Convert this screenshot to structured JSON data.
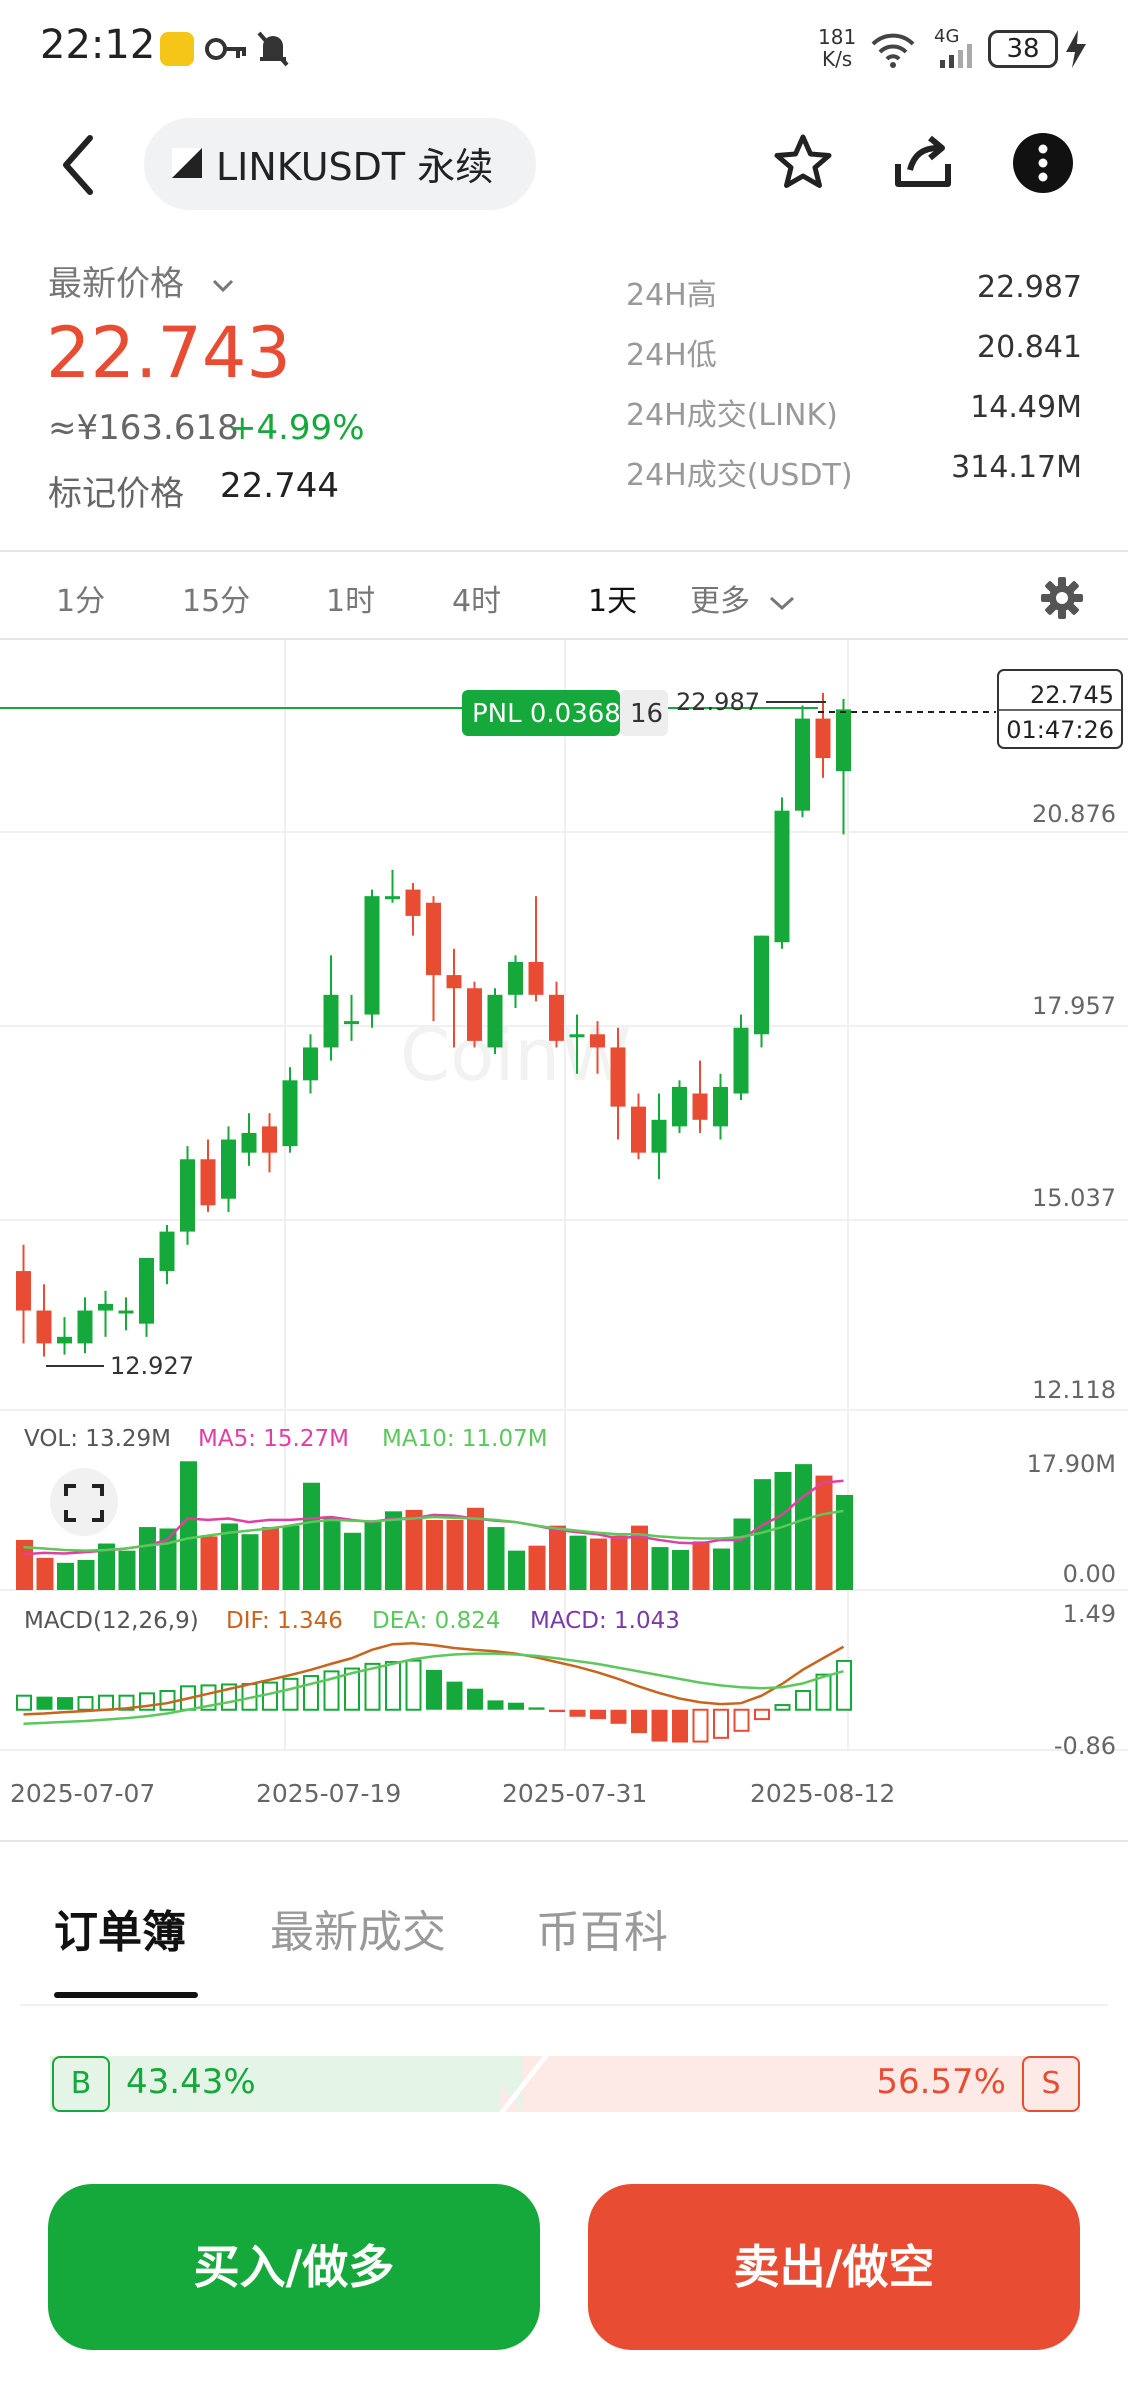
{
  "status_bar": {
    "time": "22:12",
    "net_speed_value": "181",
    "net_speed_unit": "K/s",
    "signal_label": "4G",
    "battery": "38"
  },
  "header": {
    "symbol": "LINKUSDT 永续",
    "icons": [
      "back-arrow-icon",
      "star-icon",
      "share-icon",
      "more-icon"
    ]
  },
  "price": {
    "label": "最新价格",
    "last": "22.743",
    "cny": "≈¥163.618",
    "change": "+4.99%",
    "mark_label": "标记价格",
    "mark_value": "22.744"
  },
  "stats": [
    {
      "label": "24H高",
      "value": "22.987"
    },
    {
      "label": "24H低",
      "value": "20.841"
    },
    {
      "label": "24H成交(LINK)",
      "value": "14.49M"
    },
    {
      "label": "24H成交(USDT)",
      "value": "314.17M"
    }
  ],
  "timeframes": [
    "1分",
    "15分",
    "1时",
    "4时",
    "1天",
    "更多"
  ],
  "active_timeframe": "1天",
  "chart_overlay": {
    "pnl_label": "PNL 0.0368",
    "pnl_qty": "16",
    "high_marker": "22.987",
    "low_marker": "12.927",
    "current_price_tag": "22.745",
    "countdown": "01:47:26",
    "vol_legend": "VOL: 13.29M",
    "ma5_legend": "MA5: 15.27M",
    "ma10_legend": "MA10: 11.07M",
    "macd_legend": "MACD(12,26,9)",
    "dif_legend": "DIF: 1.346",
    "dea_legend": "DEA: 0.824",
    "macd_value_legend": "MACD: 1.043"
  },
  "chart_data": {
    "type": "candlestick",
    "price_axis_labels": [
      "20.876",
      "17.957",
      "15.037",
      "12.118"
    ],
    "price_ylim": [
      12.118,
      23.795
    ],
    "volume_axis_labels": [
      "17.90M",
      "0.00"
    ],
    "volume_ylim": [
      0,
      17.9
    ],
    "macd_axis_labels": [
      "1.49",
      "-0.86"
    ],
    "macd_ylim": [
      -0.86,
      1.49
    ],
    "x_axis_labels": [
      "2025-07-07",
      "2025-07-19",
      "2025-07-31",
      "2025-08-12"
    ],
    "candles": [
      {
        "o": 14.2,
        "h": 14.6,
        "l": 13.1,
        "c": 13.6
      },
      {
        "o": 13.6,
        "h": 14.0,
        "l": 12.9,
        "c": 13.1
      },
      {
        "o": 13.1,
        "h": 13.5,
        "l": 12.93,
        "c": 13.2
      },
      {
        "o": 13.1,
        "h": 13.8,
        "l": 12.95,
        "c": 13.6
      },
      {
        "o": 13.6,
        "h": 13.9,
        "l": 13.2,
        "c": 13.7
      },
      {
        "o": 13.6,
        "h": 13.8,
        "l": 13.3,
        "c": 13.6
      },
      {
        "o": 13.4,
        "h": 14.4,
        "l": 13.2,
        "c": 14.4
      },
      {
        "o": 14.2,
        "h": 14.9,
        "l": 14.0,
        "c": 14.8
      },
      {
        "o": 14.8,
        "h": 16.1,
        "l": 14.6,
        "c": 15.9
      },
      {
        "o": 15.9,
        "h": 16.2,
        "l": 15.1,
        "c": 15.2
      },
      {
        "o": 15.3,
        "h": 16.4,
        "l": 15.1,
        "c": 16.2
      },
      {
        "o": 16.0,
        "h": 16.6,
        "l": 15.8,
        "c": 16.3
      },
      {
        "o": 16.4,
        "h": 16.6,
        "l": 15.7,
        "c": 16.0
      },
      {
        "o": 16.1,
        "h": 17.3,
        "l": 16.0,
        "c": 17.1
      },
      {
        "o": 17.1,
        "h": 17.8,
        "l": 16.9,
        "c": 17.6
      },
      {
        "o": 17.6,
        "h": 19.0,
        "l": 17.4,
        "c": 18.4
      },
      {
        "o": 18.0,
        "h": 18.4,
        "l": 17.7,
        "c": 18.0
      },
      {
        "o": 18.1,
        "h": 20.0,
        "l": 17.9,
        "c": 19.9
      },
      {
        "o": 19.9,
        "h": 20.3,
        "l": 19.8,
        "c": 19.9
      },
      {
        "o": 20.0,
        "h": 20.1,
        "l": 19.3,
        "c": 19.6
      },
      {
        "o": 19.8,
        "h": 19.9,
        "l": 18.0,
        "c": 18.7
      },
      {
        "o": 18.7,
        "h": 19.1,
        "l": 17.6,
        "c": 18.5
      },
      {
        "o": 18.5,
        "h": 18.6,
        "l": 17.6,
        "c": 17.7
      },
      {
        "o": 17.6,
        "h": 18.5,
        "l": 17.5,
        "c": 18.4
      },
      {
        "o": 18.4,
        "h": 19.0,
        "l": 18.2,
        "c": 18.9
      },
      {
        "o": 18.9,
        "h": 19.9,
        "l": 18.3,
        "c": 18.4
      },
      {
        "o": 18.4,
        "h": 18.6,
        "l": 17.6,
        "c": 17.7
      },
      {
        "o": 17.8,
        "h": 18.1,
        "l": 17.2,
        "c": 17.8
      },
      {
        "o": 17.8,
        "h": 18.0,
        "l": 17.2,
        "c": 17.6
      },
      {
        "o": 17.6,
        "h": 17.9,
        "l": 16.2,
        "c": 16.7
      },
      {
        "o": 16.7,
        "h": 16.9,
        "l": 15.9,
        "c": 16.0
      },
      {
        "o": 16.0,
        "h": 16.9,
        "l": 15.6,
        "c": 16.5
      },
      {
        "o": 16.4,
        "h": 17.1,
        "l": 16.3,
        "c": 17.0
      },
      {
        "o": 16.9,
        "h": 17.4,
        "l": 16.3,
        "c": 16.5
      },
      {
        "o": 16.4,
        "h": 17.2,
        "l": 16.2,
        "c": 17.0
      },
      {
        "o": 16.9,
        "h": 18.1,
        "l": 16.8,
        "c": 17.9
      },
      {
        "o": 17.8,
        "h": 19.3,
        "l": 17.6,
        "c": 19.3
      },
      {
        "o": 19.2,
        "h": 21.4,
        "l": 19.1,
        "c": 21.2
      },
      {
        "o": 21.2,
        "h": 22.8,
        "l": 21.1,
        "c": 22.6
      },
      {
        "o": 22.6,
        "h": 22.99,
        "l": 21.7,
        "c": 22.0
      },
      {
        "o": 21.8,
        "h": 22.9,
        "l": 20.84,
        "c": 22.74
      }
    ],
    "volume": [
      7.0,
      4.5,
      3.8,
      4.2,
      6.5,
      5.5,
      8.8,
      8.6,
      18.0,
      7.5,
      9.3,
      7.8,
      8.8,
      9.0,
      15.0,
      10.2,
      8.0,
      9.5,
      11.0,
      11.2,
      9.8,
      9.8,
      11.5,
      8.8,
      5.5,
      6.2,
      9.0,
      7.6,
      7.2,
      7.6,
      9.0,
      6.0,
      5.6,
      6.8,
      5.8,
      10.0,
      15.5,
      16.5,
      17.6,
      16.0,
      13.29
    ],
    "ma5": [
      5.0,
      5.2,
      5.1,
      5.3,
      5.5,
      5.8,
      6.2,
      7.0,
      10.0,
      9.8,
      10.0,
      9.5,
      9.8,
      9.8,
      10.0,
      10.2,
      9.8,
      9.5,
      10.0,
      10.0,
      10.5,
      10.4,
      10.0,
      9.7,
      9.5,
      9.0,
      8.4,
      8.1,
      7.8,
      7.2,
      7.5,
      7.0,
      6.6,
      6.5,
      7.0,
      7.0,
      9.0,
      10.5,
      13.0,
      15.0,
      15.27
    ],
    "ma10": [
      6.0,
      5.8,
      5.6,
      5.5,
      5.6,
      5.8,
      6.2,
      6.5,
      7.2,
      7.6,
      8.0,
      8.3,
      8.6,
      9.0,
      9.5,
      9.8,
      9.7,
      9.6,
      9.8,
      10.0,
      10.2,
      10.1,
      10.0,
      9.8,
      9.5,
      9.0,
      8.6,
      8.3,
      8.0,
      7.8,
      7.8,
      7.5,
      7.3,
      7.2,
      7.2,
      7.4,
      8.0,
      8.8,
      9.8,
      10.6,
      11.07
    ],
    "macd_hist": [
      0.3,
      0.28,
      0.27,
      0.27,
      0.3,
      0.3,
      0.35,
      0.4,
      0.5,
      0.52,
      0.54,
      0.55,
      0.58,
      0.66,
      0.72,
      0.82,
      0.88,
      0.98,
      1.02,
      1.05,
      0.85,
      0.6,
      0.45,
      0.2,
      0.15,
      0.05,
      -0.05,
      -0.15,
      -0.2,
      -0.3,
      -0.5,
      -0.68,
      -0.7,
      -0.68,
      -0.6,
      -0.45,
      -0.2,
      0.1,
      0.4,
      0.75,
      1.043
    ],
    "dif": [
      -0.1,
      -0.08,
      -0.05,
      -0.03,
      0.0,
      0.03,
      0.08,
      0.14,
      0.24,
      0.34,
      0.44,
      0.54,
      0.64,
      0.74,
      0.85,
      0.98,
      1.1,
      1.28,
      1.4,
      1.42,
      1.38,
      1.32,
      1.28,
      1.25,
      1.2,
      1.12,
      1.02,
      0.92,
      0.8,
      0.66,
      0.5,
      0.36,
      0.24,
      0.16,
      0.12,
      0.14,
      0.3,
      0.55,
      0.85,
      1.1,
      1.346
    ],
    "dea": [
      -0.3,
      -0.28,
      -0.26,
      -0.24,
      -0.21,
      -0.18,
      -0.14,
      -0.08,
      0.0,
      0.08,
      0.16,
      0.25,
      0.34,
      0.44,
      0.55,
      0.66,
      0.78,
      0.88,
      0.98,
      1.08,
      1.14,
      1.18,
      1.2,
      1.2,
      1.18,
      1.15,
      1.1,
      1.04,
      0.98,
      0.9,
      0.82,
      0.74,
      0.66,
      0.58,
      0.52,
      0.48,
      0.46,
      0.48,
      0.56,
      0.7,
      0.824
    ]
  },
  "tabs": [
    "订单簿",
    "最新成交",
    "币百科"
  ],
  "active_tab": "订单簿",
  "ratio": {
    "buy_badge": "B",
    "buy_pct": "43.43%",
    "sell_badge": "S",
    "sell_pct": "56.57%",
    "buy_fraction": 0.4343
  },
  "actions": {
    "buy": "买入/做多",
    "sell": "卖出/做空"
  },
  "colors": {
    "up": "#15a83a",
    "down": "#e84d33",
    "ma5": "#e040a0",
    "ma10": "#5cc85c",
    "dif": "#c8641e",
    "dea": "#5cc85c",
    "macd_legend": "#7a3aa8"
  }
}
